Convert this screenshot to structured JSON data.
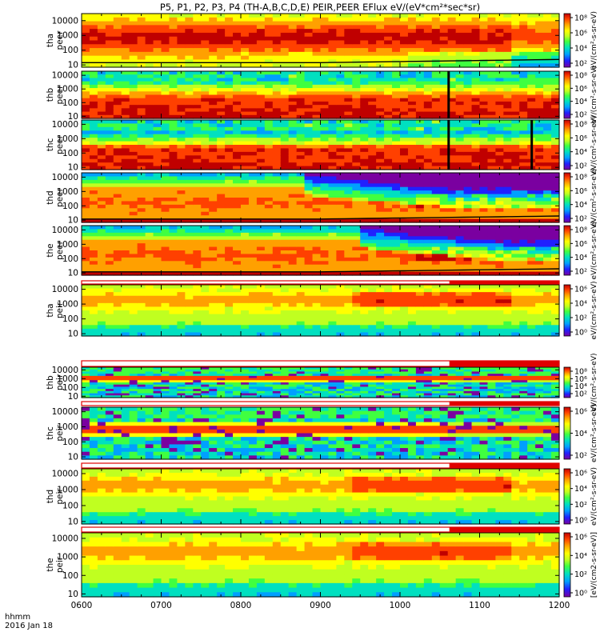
{
  "title": "P5, P1, P2, P3, P4 (TH-A,B,C,D,E) PEIR,PEER EFlux eV/(eV*cm²*sec*sr)",
  "footer": {
    "time_label": "hhmm",
    "date_label": "2016 Jan 18"
  },
  "colors": {
    "colormap": [
      "#7a00a0",
      "#2020ff",
      "#00a0ff",
      "#00e0c0",
      "#40ff40",
      "#c0ff20",
      "#ffff00",
      "#ffa000",
      "#ff4000",
      "#c00000"
    ],
    "divider_red": "#e00000",
    "trace": "#000000"
  },
  "chart_data": {
    "type": "heatmap",
    "x_axis": {
      "label": "hhmm",
      "range": [
        "0600",
        "1200"
      ],
      "ticks": [
        "0600",
        "0700",
        "0800",
        "0900",
        "1000",
        "1100",
        "1200"
      ]
    },
    "panels": [
      {
        "id": "tha_peer",
        "label": [
          "tha",
          "peer"
        ],
        "y_scale": "log",
        "y_range": [
          7,
          30000
        ],
        "y_ticks": [
          "10",
          "100",
          "1000",
          "10000"
        ],
        "cb_ticks": [
          "10⁸",
          "10⁶",
          "10⁴",
          "10²"
        ],
        "cb_unit": "eV/(cm²-s-sr-eV)"
      },
      {
        "id": "thb_peer",
        "label": [
          "thb",
          "peer"
        ],
        "y_scale": "log",
        "y_range": [
          7,
          20000
        ],
        "y_ticks": [
          "10",
          "100",
          "1000",
          "10000"
        ],
        "cb_ticks": [
          "10⁸",
          "10⁶",
          "10⁴",
          "10²"
        ],
        "cb_unit": "eV/(cm²-s-sr-eV)"
      },
      {
        "id": "thc_peer",
        "label": [
          "thc",
          "peer"
        ],
        "y_scale": "log",
        "y_range": [
          7,
          20000
        ],
        "y_ticks": [
          "10",
          "100",
          "1000",
          "10000"
        ],
        "cb_ticks": [
          "10⁸",
          "10⁶",
          "10⁴",
          "10²"
        ],
        "cb_unit": "eV/(cm²-s-sr-eV)"
      },
      {
        "id": "thd_peer",
        "label": [
          "thd",
          "peer"
        ],
        "y_scale": "log",
        "y_range": [
          7,
          20000
        ],
        "y_ticks": [
          "10",
          "100",
          "1000",
          "10000"
        ],
        "cb_ticks": [
          "10⁸",
          "10⁶",
          "10⁴",
          "10²"
        ],
        "cb_unit": "eV/(cm²-s-sr-eV)"
      },
      {
        "id": "the_peer",
        "label": [
          "the",
          "peer"
        ],
        "y_scale": "log",
        "y_range": [
          7,
          20000
        ],
        "y_ticks": [
          "10",
          "100",
          "1000",
          "10000"
        ],
        "cb_ticks": [
          "10⁸",
          "10⁶",
          "10⁴",
          "10²"
        ],
        "cb_unit": "eV/(cm²-s-sr-eV)"
      },
      {
        "id": "tha_peir",
        "label": [
          "tha",
          "peir"
        ],
        "y_scale": "log",
        "y_range": [
          7,
          20000
        ],
        "y_ticks": [
          "10",
          "100",
          "1000",
          "10000"
        ],
        "cb_ticks": [
          "10⁶",
          "10⁴",
          "10²",
          "10⁰"
        ],
        "cb_unit": "eV/(cm²-s-sr-eV)"
      },
      {
        "id": "thb_peir",
        "label": [
          "thb",
          "peir"
        ],
        "y_scale": "log",
        "y_range": [
          7,
          20000
        ],
        "y_ticks": [
          "10",
          "100",
          "1000",
          "10000"
        ],
        "cb_ticks": [
          "10⁸",
          "10⁶",
          "10⁴",
          "10²"
        ],
        "cb_unit": "eV/(cm²-s-sr-eV)"
      },
      {
        "id": "thc_peir",
        "label": [
          "thc",
          "peir"
        ],
        "y_scale": "log",
        "y_range": [
          7,
          20000
        ],
        "y_ticks": [
          "10",
          "100",
          "1000",
          "10000"
        ],
        "cb_ticks": [
          "10⁶",
          "10⁴",
          "10²"
        ],
        "cb_unit": "eV/(cm²-s-sr-eV)"
      },
      {
        "id": "thd_peir",
        "label": [
          "thd",
          "peir"
        ],
        "y_scale": "log",
        "y_range": [
          7,
          20000
        ],
        "y_ticks": [
          "10",
          "100",
          "1000",
          "10000"
        ],
        "cb_ticks": [
          "10⁶",
          "10⁴",
          "10²",
          "10⁰"
        ],
        "cb_unit": "eV/(cm²-s-sr-eV)"
      },
      {
        "id": "the_peir",
        "label": [
          "the",
          "peir"
        ],
        "y_scale": "log",
        "y_range": [
          7,
          20000
        ],
        "y_ticks": [
          "10",
          "100",
          "1000",
          "10000"
        ],
        "cb_ticks": [
          "10⁶",
          "10⁴",
          "10²",
          "10⁰"
        ],
        "cb_unit": "[eV/(cm2-s-sr-eV)]"
      }
    ]
  }
}
